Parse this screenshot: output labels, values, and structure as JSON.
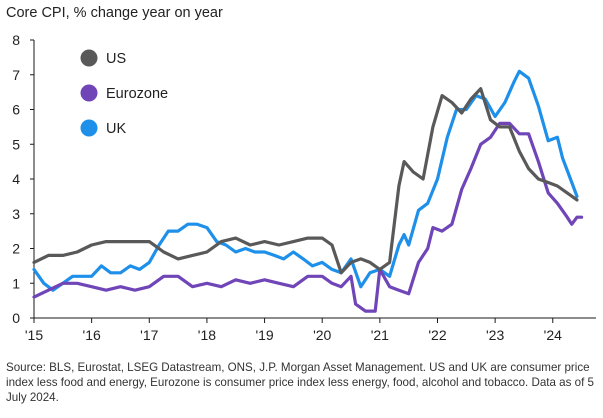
{
  "title": "Core CPI, % change year on year",
  "source_note": "Source: BLS, Eurostat, LSEG Datastream, ONS, J.P. Morgan Asset Management. US and UK are consumer price index less food and energy, Eurozone is consumer price index less energy, food, alcohol and tobacco.  Data as of 5 July 2024.",
  "colors": {
    "US": "#595959",
    "Eurozone": "#6f45b8",
    "UK": "#1e90ea",
    "axis": "#1a1a1a",
    "grid": "#e3e3e3"
  },
  "chart_data": {
    "type": "line",
    "title": "Core CPI, % change year on year",
    "xlabel": "",
    "ylabel": "",
    "x_range": [
      2015.0,
      2024.75
    ],
    "ylim": [
      0,
      8
    ],
    "y_ticks": [
      "0",
      "1",
      "2",
      "3",
      "4",
      "5",
      "6",
      "7",
      "8"
    ],
    "x_ticks": [
      {
        "label": "'15",
        "x": 2015
      },
      {
        "label": "'16",
        "x": 2016
      },
      {
        "label": "'17",
        "x": 2017
      },
      {
        "label": "'18",
        "x": 2018
      },
      {
        "label": "'19",
        "x": 2019
      },
      {
        "label": "'20",
        "x": 2020
      },
      {
        "label": "'21",
        "x": 2021
      },
      {
        "label": "'22",
        "x": 2022
      },
      {
        "label": "'23",
        "x": 2023
      },
      {
        "label": "'24",
        "x": 2024
      }
    ],
    "grid": false,
    "legend": "top-left",
    "series": [
      {
        "name": "US",
        "points": [
          [
            2015.0,
            1.6
          ],
          [
            2015.25,
            1.8
          ],
          [
            2015.5,
            1.8
          ],
          [
            2015.75,
            1.9
          ],
          [
            2016.0,
            2.1
          ],
          [
            2016.25,
            2.2
          ],
          [
            2016.5,
            2.2
          ],
          [
            2016.75,
            2.2
          ],
          [
            2017.0,
            2.2
          ],
          [
            2017.25,
            1.9
          ],
          [
            2017.5,
            1.7
          ],
          [
            2017.75,
            1.8
          ],
          [
            2018.0,
            1.9
          ],
          [
            2018.25,
            2.2
          ],
          [
            2018.5,
            2.3
          ],
          [
            2018.75,
            2.1
          ],
          [
            2019.0,
            2.2
          ],
          [
            2019.25,
            2.1
          ],
          [
            2019.5,
            2.2
          ],
          [
            2019.75,
            2.3
          ],
          [
            2020.0,
            2.3
          ],
          [
            2020.17,
            2.1
          ],
          [
            2020.33,
            1.3
          ],
          [
            2020.5,
            1.6
          ],
          [
            2020.67,
            1.7
          ],
          [
            2020.83,
            1.6
          ],
          [
            2021.0,
            1.4
          ],
          [
            2021.17,
            1.6
          ],
          [
            2021.33,
            3.8
          ],
          [
            2021.42,
            4.5
          ],
          [
            2021.58,
            4.2
          ],
          [
            2021.75,
            4.0
          ],
          [
            2021.92,
            5.5
          ],
          [
            2022.08,
            6.4
          ],
          [
            2022.25,
            6.2
          ],
          [
            2022.42,
            5.9
          ],
          [
            2022.58,
            6.3
          ],
          [
            2022.75,
            6.6
          ],
          [
            2022.92,
            5.7
          ],
          [
            2023.08,
            5.5
          ],
          [
            2023.25,
            5.5
          ],
          [
            2023.42,
            4.8
          ],
          [
            2023.58,
            4.3
          ],
          [
            2023.75,
            4.0
          ],
          [
            2023.92,
            3.9
          ],
          [
            2024.08,
            3.8
          ],
          [
            2024.25,
            3.6
          ],
          [
            2024.42,
            3.4
          ]
        ]
      },
      {
        "name": "Eurozone",
        "points": [
          [
            2015.0,
            0.6
          ],
          [
            2015.25,
            0.8
          ],
          [
            2015.5,
            1.0
          ],
          [
            2015.75,
            1.0
          ],
          [
            2016.0,
            0.9
          ],
          [
            2016.25,
            0.8
          ],
          [
            2016.5,
            0.9
          ],
          [
            2016.75,
            0.8
          ],
          [
            2017.0,
            0.9
          ],
          [
            2017.25,
            1.2
          ],
          [
            2017.5,
            1.2
          ],
          [
            2017.75,
            0.9
          ],
          [
            2018.0,
            1.0
          ],
          [
            2018.25,
            0.9
          ],
          [
            2018.5,
            1.1
          ],
          [
            2018.75,
            1.0
          ],
          [
            2019.0,
            1.1
          ],
          [
            2019.25,
            1.0
          ],
          [
            2019.5,
            0.9
          ],
          [
            2019.75,
            1.2
          ],
          [
            2020.0,
            1.2
          ],
          [
            2020.17,
            1.0
          ],
          [
            2020.33,
            0.9
          ],
          [
            2020.5,
            1.2
          ],
          [
            2020.58,
            0.4
          ],
          [
            2020.75,
            0.2
          ],
          [
            2020.92,
            0.2
          ],
          [
            2021.0,
            1.4
          ],
          [
            2021.17,
            0.9
          ],
          [
            2021.33,
            0.8
          ],
          [
            2021.5,
            0.7
          ],
          [
            2021.67,
            1.6
          ],
          [
            2021.83,
            2.0
          ],
          [
            2021.92,
            2.6
          ],
          [
            2022.08,
            2.5
          ],
          [
            2022.25,
            2.7
          ],
          [
            2022.42,
            3.7
          ],
          [
            2022.58,
            4.3
          ],
          [
            2022.75,
            5.0
          ],
          [
            2022.92,
            5.2
          ],
          [
            2023.08,
            5.6
          ],
          [
            2023.25,
            5.6
          ],
          [
            2023.42,
            5.3
          ],
          [
            2023.58,
            5.3
          ],
          [
            2023.75,
            4.5
          ],
          [
            2023.92,
            3.6
          ],
          [
            2024.08,
            3.3
          ],
          [
            2024.25,
            2.9
          ],
          [
            2024.33,
            2.7
          ],
          [
            2024.42,
            2.9
          ],
          [
            2024.5,
            2.9
          ]
        ]
      },
      {
        "name": "UK",
        "points": [
          [
            2015.0,
            1.4
          ],
          [
            2015.17,
            1.0
          ],
          [
            2015.33,
            0.8
          ],
          [
            2015.5,
            1.0
          ],
          [
            2015.67,
            1.2
          ],
          [
            2015.83,
            1.2
          ],
          [
            2016.0,
            1.2
          ],
          [
            2016.17,
            1.5
          ],
          [
            2016.33,
            1.3
          ],
          [
            2016.5,
            1.3
          ],
          [
            2016.67,
            1.5
          ],
          [
            2016.83,
            1.4
          ],
          [
            2017.0,
            1.6
          ],
          [
            2017.17,
            2.1
          ],
          [
            2017.33,
            2.5
          ],
          [
            2017.5,
            2.5
          ],
          [
            2017.67,
            2.7
          ],
          [
            2017.83,
            2.7
          ],
          [
            2018.0,
            2.6
          ],
          [
            2018.17,
            2.2
          ],
          [
            2018.33,
            2.1
          ],
          [
            2018.5,
            1.9
          ],
          [
            2018.67,
            2.0
          ],
          [
            2018.83,
            1.9
          ],
          [
            2019.0,
            1.9
          ],
          [
            2019.17,
            1.8
          ],
          [
            2019.33,
            1.7
          ],
          [
            2019.5,
            1.9
          ],
          [
            2019.67,
            1.7
          ],
          [
            2019.83,
            1.5
          ],
          [
            2020.0,
            1.6
          ],
          [
            2020.17,
            1.4
          ],
          [
            2020.33,
            1.3
          ],
          [
            2020.5,
            1.7
          ],
          [
            2020.67,
            0.9
          ],
          [
            2020.83,
            1.3
          ],
          [
            2021.0,
            1.4
          ],
          [
            2021.17,
            1.2
          ],
          [
            2021.33,
            2.1
          ],
          [
            2021.42,
            2.4
          ],
          [
            2021.5,
            2.1
          ],
          [
            2021.67,
            3.1
          ],
          [
            2021.83,
            3.3
          ],
          [
            2022.0,
            4.0
          ],
          [
            2022.17,
            5.2
          ],
          [
            2022.33,
            6.0
          ],
          [
            2022.5,
            6.0
          ],
          [
            2022.67,
            6.4
          ],
          [
            2022.83,
            6.3
          ],
          [
            2023.0,
            5.8
          ],
          [
            2023.17,
            6.2
          ],
          [
            2023.33,
            6.8
          ],
          [
            2023.42,
            7.1
          ],
          [
            2023.58,
            6.9
          ],
          [
            2023.75,
            6.1
          ],
          [
            2023.92,
            5.1
          ],
          [
            2024.08,
            5.2
          ],
          [
            2024.17,
            4.6
          ],
          [
            2024.33,
            3.9
          ],
          [
            2024.42,
            3.5
          ]
        ]
      }
    ]
  }
}
